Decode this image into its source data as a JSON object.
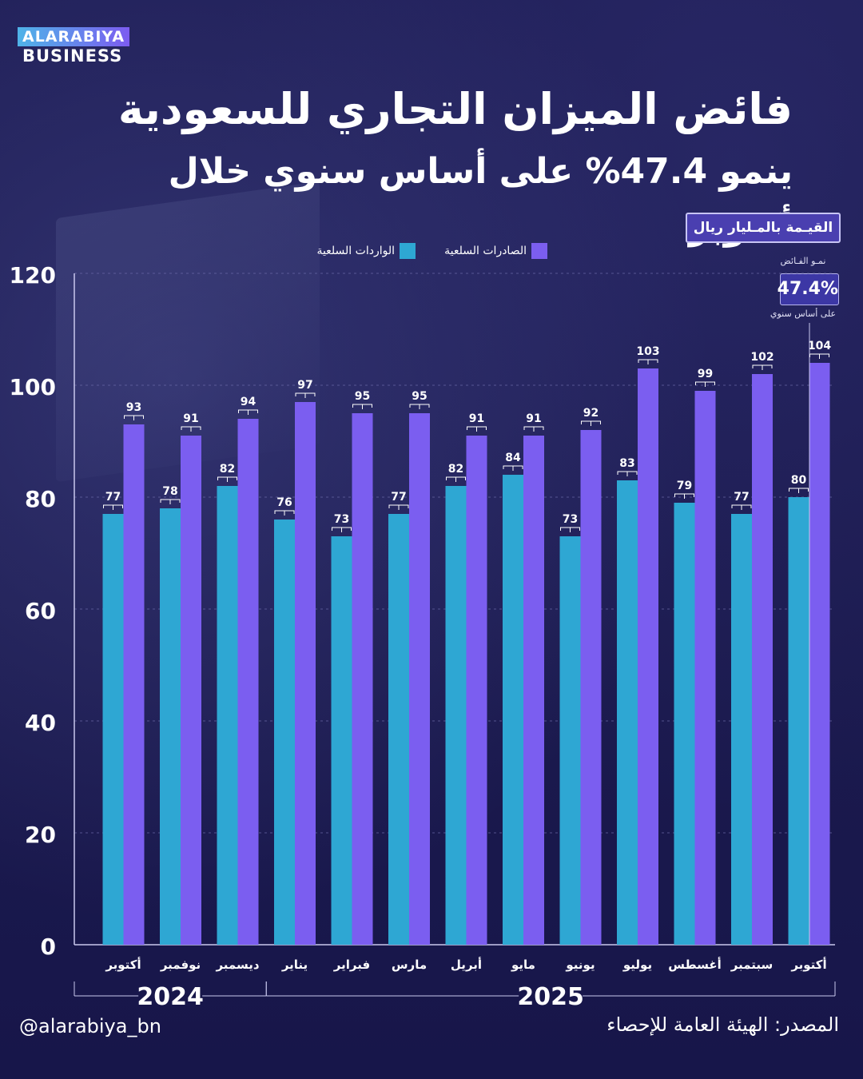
{
  "brand": {
    "line1": "ALARABIYA",
    "line2": "BUSINESS"
  },
  "title": "فائض الميزان التجاري للسعودية",
  "subtitle": "ينمو 47.4% على أساس سنوي خلال أكتوبر",
  "unit_label": "القيـمة بالمـليار ريال",
  "growth_callout": {
    "top": "نمـو الفـائض",
    "value": "47.4%",
    "bottom": "على أساس سنوي"
  },
  "footer": {
    "handle": "@alarabiya_bn",
    "source": "المصدر: الهيئة العامة للإحصاء"
  },
  "colors": {
    "imports": "#2ea7d3",
    "exports": "#7b5ef0",
    "background": "#1b1a4e"
  },
  "chart_data": {
    "type": "bar",
    "categories": [
      "أكتوبر",
      "نوفمبر",
      "ديسمبر",
      "يناير",
      "فبراير",
      "مارس",
      "أبريل",
      "مايو",
      "يونيو",
      "يوليو",
      "أغسطس",
      "سبتمبر",
      "أكتوبر"
    ],
    "year_groups": [
      {
        "label": "2024",
        "count": 3
      },
      {
        "label": "2025",
        "count": 10
      }
    ],
    "series": [
      {
        "name": "الواردات السلعية",
        "color": "#2ea7d3",
        "values": [
          77,
          78,
          82,
          76,
          73,
          77,
          82,
          84,
          73,
          83,
          79,
          77,
          80
        ]
      },
      {
        "name": "الصادرات السلعية",
        "color": "#7b5ef0",
        "values": [
          93,
          91,
          94,
          97,
          95,
          95,
          91,
          91,
          92,
          103,
          99,
          102,
          104
        ]
      }
    ],
    "ylim": [
      0,
      120
    ],
    "yticks": [
      0,
      20,
      40,
      60,
      80,
      100,
      120
    ],
    "grid": true,
    "legend_position": "top"
  }
}
